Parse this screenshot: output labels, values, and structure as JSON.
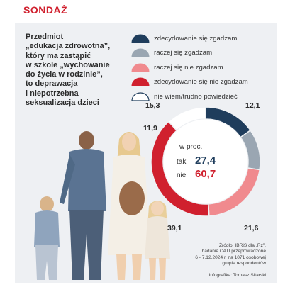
{
  "header": "SONDAŻ",
  "question_lines": [
    "Przedmiot",
    "„edukacja zdrowotna”,",
    "który ma zastąpić",
    "w szkole „wychowanie",
    "do życia w rodzinie”,",
    "to deprawacja",
    "i niepotrzebna",
    "seksualizacja dzieci"
  ],
  "legend": [
    {
      "label": "zdecydowanie się zgadzam",
      "color": "#1f3d5c"
    },
    {
      "label": "raczej się zgadzam",
      "color": "#9aa6b2"
    },
    {
      "label": "raczej się nie zgadzam",
      "color": "#f08a8e"
    },
    {
      "label": "zdecydowanie się nie zgadzam",
      "color": "#d0202e"
    },
    {
      "label": "nie wiem/trudno powiedzieć",
      "color": "#ffffff"
    }
  ],
  "center": {
    "unit": "w proc.",
    "yes_label": "tak",
    "yes_value": "27,4",
    "yes_color": "#1f3d5c",
    "no_label": "nie",
    "no_value": "60,7",
    "no_color": "#d0202e"
  },
  "source_lines": [
    "Źródło: IBRiS dla „Rz”,",
    "badanie CATI przeprowadzone",
    "6 - 7.12.2024 r. na 1071 osobowej",
    "grupie respondentów"
  ],
  "credit": "Infografika: Tomasz Sitarski",
  "chart_data": {
    "type": "pie",
    "donut": true,
    "categories": [
      "zdecydowanie się zgadzam",
      "raczej się zgadzam",
      "raczej się nie zgadzam",
      "zdecydowanie się nie zgadzam",
      "nie wiem/trudno powiedzieć"
    ],
    "values": [
      15.3,
      12.1,
      21.6,
      39.1,
      11.9
    ],
    "value_labels": [
      "15,3",
      "12,1",
      "21,6",
      "39,1",
      "11,9"
    ],
    "colors": [
      "#1f3d5c",
      "#9aa6b2",
      "#f08a8e",
      "#d0202e",
      "#ffffff"
    ],
    "unit": "w proc."
  }
}
